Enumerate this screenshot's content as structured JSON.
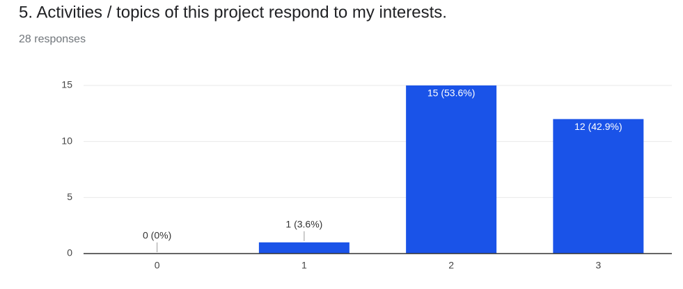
{
  "chart_data": {
    "type": "bar",
    "title": "5. Activities / topics of this project respond to my interests.",
    "subtitle": "28 responses",
    "categories": [
      "0",
      "1",
      "2",
      "3"
    ],
    "values": [
      0,
      1,
      15,
      12
    ],
    "value_labels": [
      "0 (0%)",
      "1 (3.6%)",
      "15 (53.6%)",
      "12 (42.9%)"
    ],
    "color": "#1a53e8",
    "ylim": [
      0,
      15
    ],
    "yticks": [
      0,
      5,
      10,
      15
    ],
    "grid": true
  }
}
